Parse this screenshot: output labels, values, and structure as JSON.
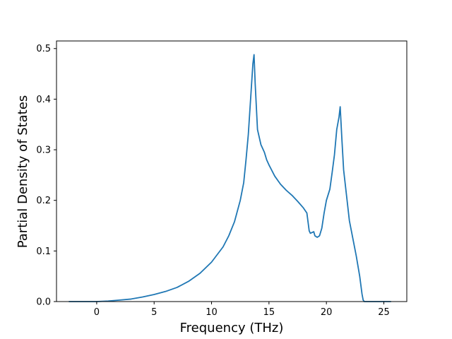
{
  "chart_data": {
    "type": "line",
    "title": "",
    "xlabel": "Frequency (THz)",
    "ylabel": "Partial Density of States",
    "xlim": [
      -3.5,
      27.0
    ],
    "ylim": [
      0.0,
      0.515
    ],
    "x_ticks": [
      0,
      5,
      10,
      15,
      20,
      25
    ],
    "y_ticks": [
      0.0,
      0.1,
      0.2,
      0.3,
      0.4,
      0.5
    ],
    "x_tick_labels": [
      "0",
      "5",
      "10",
      "15",
      "20",
      "25"
    ],
    "y_tick_labels": [
      "0.0",
      "0.1",
      "0.2",
      "0.3",
      "0.4",
      "0.5"
    ],
    "grid": false,
    "legend": "none",
    "series": [
      {
        "color": "#1f77b4",
        "x": [
          -2.4,
          0.0,
          1.0,
          2.0,
          3.0,
          4.0,
          5.0,
          6.0,
          7.0,
          8.0,
          9.0,
          10.0,
          11.0,
          11.5,
          12.0,
          12.5,
          12.8,
          13.0,
          13.2,
          13.4,
          13.6,
          13.7,
          13.8,
          14.0,
          14.3,
          14.6,
          14.8,
          15.0,
          15.5,
          16.0,
          16.5,
          17.0,
          17.5,
          18.0,
          18.3,
          18.5,
          18.6,
          18.9,
          19.0,
          19.2,
          19.4,
          19.6,
          19.8,
          20.0,
          20.3,
          20.5,
          20.7,
          20.9,
          21.1,
          21.2,
          21.35,
          21.5,
          21.8,
          22.0,
          22.3,
          22.6,
          22.9,
          23.1,
          23.2,
          23.3,
          23.5,
          24.0,
          25.6
        ],
        "y": [
          0.0,
          0.0,
          0.001,
          0.003,
          0.005,
          0.009,
          0.014,
          0.02,
          0.028,
          0.04,
          0.056,
          0.078,
          0.108,
          0.13,
          0.158,
          0.2,
          0.235,
          0.28,
          0.33,
          0.4,
          0.47,
          0.488,
          0.43,
          0.34,
          0.31,
          0.295,
          0.28,
          0.27,
          0.248,
          0.232,
          0.22,
          0.21,
          0.198,
          0.185,
          0.175,
          0.14,
          0.135,
          0.138,
          0.13,
          0.127,
          0.13,
          0.145,
          0.175,
          0.2,
          0.222,
          0.255,
          0.29,
          0.34,
          0.365,
          0.385,
          0.32,
          0.26,
          0.2,
          0.16,
          0.125,
          0.09,
          0.05,
          0.015,
          0.003,
          0.0,
          0.0,
          0.0,
          0.0
        ]
      }
    ]
  }
}
